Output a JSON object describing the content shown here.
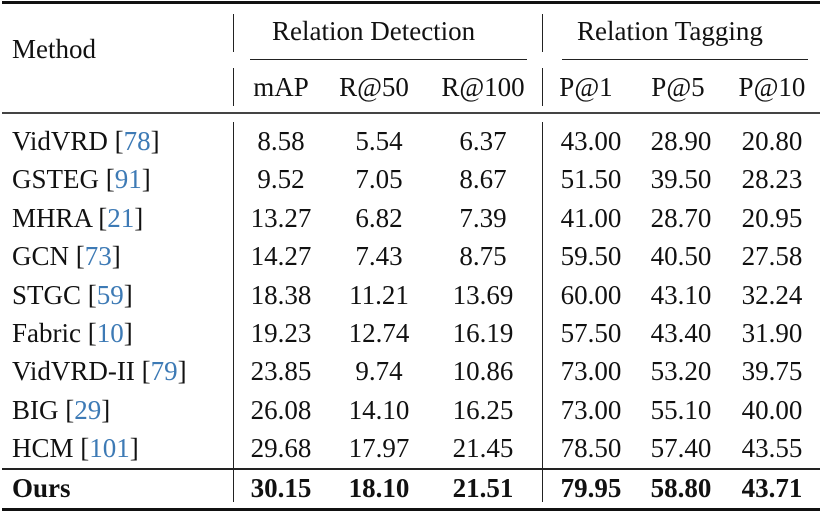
{
  "table": {
    "header": {
      "method_label": "Method",
      "groups": [
        {
          "label": "Relation Detection",
          "columns": [
            "mAP",
            "R@50",
            "R@100"
          ]
        },
        {
          "label": "Relation Tagging",
          "columns": [
            "P@1",
            "P@5",
            "P@10"
          ]
        }
      ]
    },
    "citation_color": "#3d7ab5",
    "rows": [
      {
        "method": "VidVRD",
        "cite": "78",
        "values": [
          "8.58",
          "5.54",
          "6.37",
          "43.00",
          "28.90",
          "20.80"
        ]
      },
      {
        "method": "GSTEG",
        "cite": "91",
        "values": [
          "9.52",
          "7.05",
          "8.67",
          "51.50",
          "39.50",
          "28.23"
        ]
      },
      {
        "method": "MHRA",
        "cite": "21",
        "values": [
          "13.27",
          "6.82",
          "7.39",
          "41.00",
          "28.70",
          "20.95"
        ]
      },
      {
        "method": "GCN",
        "cite": "73",
        "values": [
          "14.27",
          "7.43",
          "8.75",
          "59.50",
          "40.50",
          "27.58"
        ]
      },
      {
        "method": "STGC ",
        "cite": "59",
        "values": [
          "18.38",
          "11.21",
          "13.69",
          "60.00",
          "43.10",
          "32.24"
        ]
      },
      {
        "method": "Fabric ",
        "cite": "10",
        "values": [
          "19.23",
          "12.74",
          "16.19",
          "57.50",
          "43.40",
          "31.90"
        ]
      },
      {
        "method": "VidVRD-II ",
        "cite": "79",
        "values": [
          "23.85",
          "9.74",
          "10.86",
          "73.00",
          "53.20",
          "39.75"
        ]
      },
      {
        "method": "BIG ",
        "cite": "29",
        "values": [
          "26.08",
          "14.10",
          "16.25",
          "73.00",
          "55.10",
          "40.00"
        ]
      },
      {
        "method": "HCM",
        "cite": "101",
        "values": [
          "29.68",
          "17.97",
          "21.45",
          "78.50",
          "57.40",
          "43.55"
        ]
      }
    ],
    "ours": {
      "method": "Ours",
      "values": [
        "30.15",
        "18.10",
        "21.51",
        "79.95",
        "58.80",
        "43.71"
      ]
    }
  }
}
